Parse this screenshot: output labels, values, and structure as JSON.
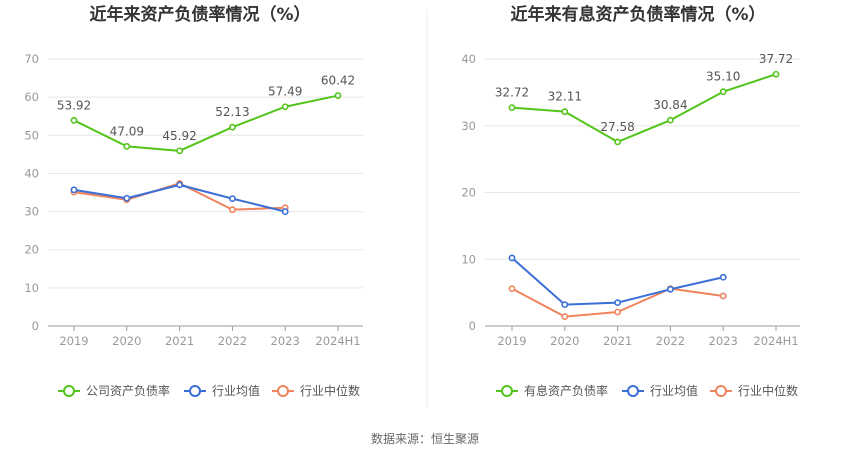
{
  "footer": "数据来源：恒生聚源",
  "chart_data": [
    {
      "type": "line",
      "title": "近年来资产负债率情况（%）",
      "categories": [
        "2019",
        "2020",
        "2021",
        "2022",
        "2023",
        "2024H1"
      ],
      "ylim": [
        0,
        70
      ],
      "yticks": [
        0,
        10,
        20,
        30,
        40,
        50,
        60,
        70
      ],
      "grid": true,
      "legend_position": "bottom",
      "series": [
        {
          "name": "公司资产负债率",
          "color": "#52c41a",
          "values": [
            53.92,
            47.09,
            45.92,
            52.13,
            57.49,
            60.42
          ],
          "labels": [
            "53.92",
            "47.09",
            "45.92",
            "52.13",
            "57.49",
            "60.42"
          ]
        },
        {
          "name": "行业均值",
          "color": "#3b6fd8",
          "values": [
            35.7,
            33.5,
            37.0,
            33.4,
            30.0,
            null
          ]
        },
        {
          "name": "行业中位数",
          "color": "#f0845c",
          "values": [
            35.1,
            33.1,
            37.4,
            30.5,
            31.0,
            null
          ]
        }
      ]
    },
    {
      "type": "line",
      "title": "近年来有息资产负债率情况（%）",
      "categories": [
        "2019",
        "2020",
        "2021",
        "2022",
        "2023",
        "2024H1"
      ],
      "ylim": [
        0,
        40
      ],
      "yticks": [
        0,
        10,
        20,
        30,
        40
      ],
      "grid": true,
      "legend_position": "bottom",
      "series": [
        {
          "name": "有息资产负债率",
          "color": "#52c41a",
          "values": [
            32.72,
            32.11,
            27.58,
            30.84,
            35.1,
            37.72
          ],
          "labels": [
            "32.72",
            "32.11",
            "27.58",
            "30.84",
            "35.10",
            "37.72"
          ]
        },
        {
          "name": "行业均值",
          "color": "#3b6fd8",
          "values": [
            10.2,
            3.2,
            3.5,
            5.5,
            7.3,
            null
          ]
        },
        {
          "name": "行业中位数",
          "color": "#f0845c",
          "values": [
            5.6,
            1.4,
            2.1,
            5.6,
            4.5,
            null
          ]
        }
      ]
    }
  ]
}
